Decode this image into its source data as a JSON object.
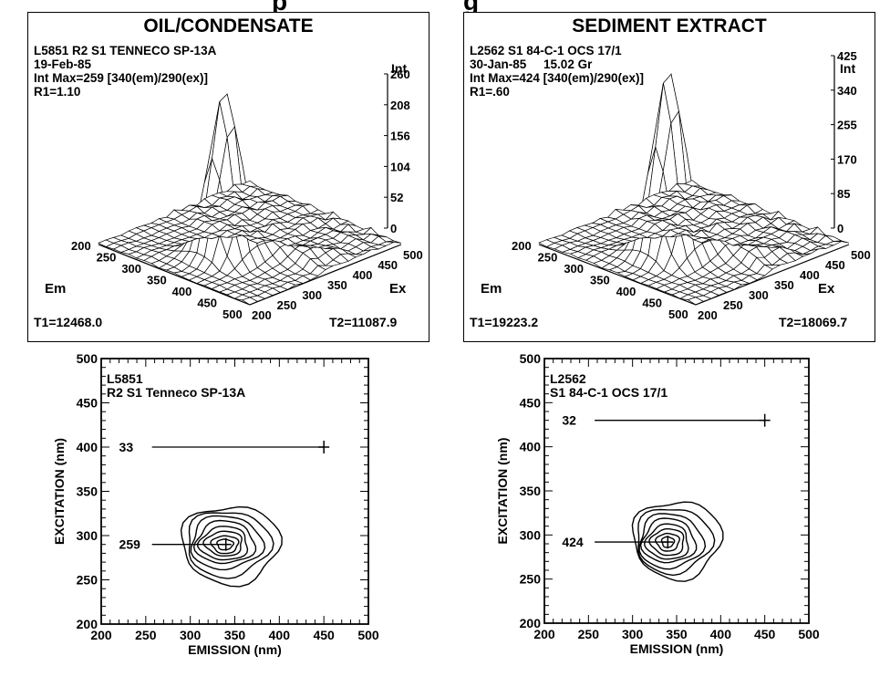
{
  "page": {
    "title_fragment": "p                                 g"
  },
  "chart_data": [
    {
      "type": "surface3d",
      "title": "OIL/CONDENSATE",
      "meta": [
        "L5851  R2 S1 TENNECO SP-13A",
        "19-Feb-85",
        "Int Max=259 [340(em)/290(ex)]",
        "R1=1.10"
      ],
      "z_label": "Int",
      "z_ticks": [
        "260",
        "208",
        "156",
        "104",
        "52",
        "0"
      ],
      "z_max": 260,
      "peak": 259,
      "em_label": "Em",
      "ex_label": "Ex",
      "em_ticks": [
        "200",
        "250",
        "300",
        "350",
        "400",
        "450",
        "500"
      ],
      "ex_ticks": [
        "200",
        "250",
        "300",
        "350",
        "400",
        "450",
        "500"
      ],
      "peak_em": 340,
      "peak_ex": 290,
      "t1": "T1=12468.0",
      "t2": "T2=11087.9"
    },
    {
      "type": "surface3d",
      "title": "SEDIMENT EXTRACT",
      "meta": [
        "L2562 S1 84-C-1 OCS 17/1",
        "30-Jan-85     15.02 Gr",
        "Int Max=424 [340(em)/290(ex)]",
        "R1=.60"
      ],
      "z_label": "Int",
      "z_ticks": [
        "425",
        "340",
        "255",
        "170",
        "85",
        "0"
      ],
      "z_max": 425,
      "peak": 424,
      "em_label": "Em",
      "ex_label": "Ex",
      "em_ticks": [
        "200",
        "250",
        "300",
        "350",
        "400",
        "450",
        "500"
      ],
      "ex_ticks": [
        "200",
        "250",
        "300",
        "350",
        "400",
        "450",
        "500"
      ],
      "peak_em": 340,
      "peak_ex": 290,
      "t1": "T1=19223.2",
      "t2": "T2=18069.7"
    },
    {
      "type": "contour",
      "label_line1": "L5851",
      "label_line2": "R2 S1 Tenneco SP-13A",
      "xlabel": "EMISSION (nm)",
      "ylabel": "EXCITATION (nm)",
      "xlim": [
        200,
        500
      ],
      "ylim": [
        200,
        500
      ],
      "xticks": [
        "200",
        "250",
        "300",
        "350",
        "400",
        "450",
        "500"
      ],
      "yticks": [
        "500",
        "450",
        "400",
        "350",
        "300",
        "250",
        "200"
      ],
      "ref_marker": {
        "value": "33",
        "x": 450,
        "y": 400
      },
      "peak_marker": {
        "value": "259",
        "x": 340,
        "y": 290
      },
      "contours": [
        {
          "cx": 345,
          "cy": 290,
          "rx": 55,
          "ry": 44
        },
        {
          "cx": 342,
          "cy": 291,
          "rx": 47,
          "ry": 37
        },
        {
          "cx": 340,
          "cy": 292,
          "rx": 40,
          "ry": 30
        },
        {
          "cx": 339,
          "cy": 292,
          "rx": 33,
          "ry": 24
        },
        {
          "cx": 338,
          "cy": 291,
          "rx": 27,
          "ry": 19
        },
        {
          "cx": 338,
          "cy": 291,
          "rx": 21,
          "ry": 14
        },
        {
          "cx": 339,
          "cy": 290,
          "rx": 15,
          "ry": 10
        },
        {
          "cx": 339,
          "cy": 290,
          "rx": 9,
          "ry": 6
        }
      ]
    },
    {
      "type": "contour",
      "label_line1": "L2562",
      "label_line2": "S1 84-C-1 OCS 17/1",
      "xlabel": "EMISSION (nm)",
      "ylabel": "EXCITATION (nm)",
      "xlim": [
        200,
        500
      ],
      "ylim": [
        200,
        500
      ],
      "xticks": [
        "200",
        "250",
        "300",
        "350",
        "400",
        "450",
        "500"
      ],
      "yticks": [
        "500",
        "450",
        "400",
        "350",
        "300",
        "250",
        "200"
      ],
      "ref_marker": {
        "value": "32",
        "x": 450,
        "y": 430
      },
      "peak_marker": {
        "value": "424",
        "x": 340,
        "y": 292
      },
      "contours": [
        {
          "cx": 350,
          "cy": 295,
          "rx": 50,
          "ry": 44
        },
        {
          "cx": 346,
          "cy": 294,
          "rx": 43,
          "ry": 37
        },
        {
          "cx": 343,
          "cy": 293,
          "rx": 36,
          "ry": 31
        },
        {
          "cx": 341,
          "cy": 293,
          "rx": 30,
          "ry": 25
        },
        {
          "cx": 340,
          "cy": 292,
          "rx": 24,
          "ry": 20
        },
        {
          "cx": 340,
          "cy": 292,
          "rx": 19,
          "ry": 15
        },
        {
          "cx": 340,
          "cy": 292,
          "rx": 13,
          "ry": 10
        },
        {
          "cx": 340,
          "cy": 292,
          "rx": 7,
          "ry": 6
        }
      ]
    }
  ]
}
